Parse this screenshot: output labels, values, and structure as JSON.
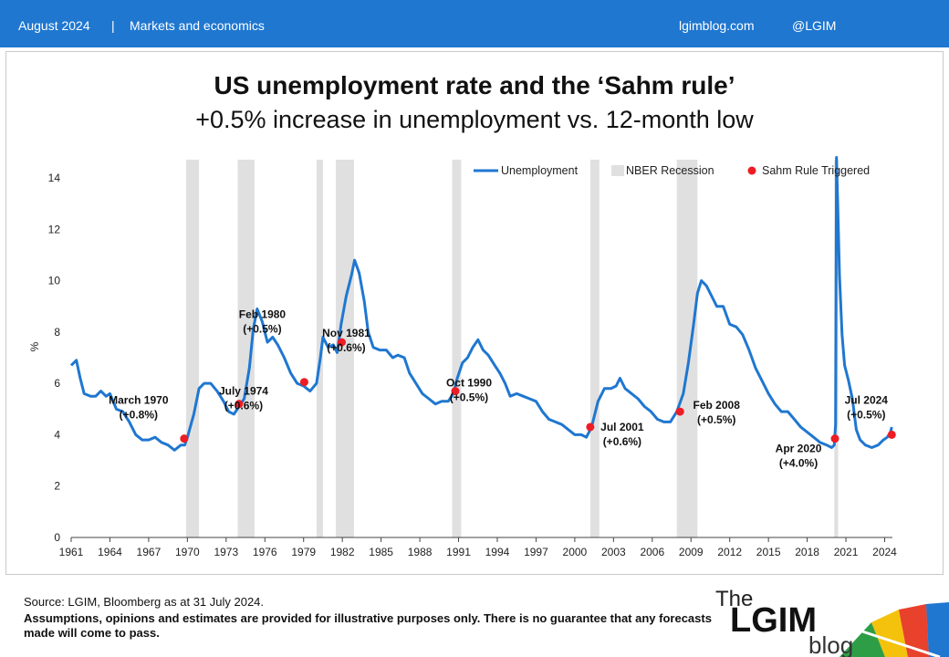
{
  "header": {
    "left_date": "August 2024",
    "separator": "|",
    "section": "Markets and economics",
    "site": "lgimblog.com",
    "handle": "@LGIM"
  },
  "title": "US unemployment rate and the ‘Sahm rule’",
  "subtitle": "+0.5% increase in unemployment vs. 12-month low",
  "footer": {
    "source": "Source: LGIM,  Bloomberg as at 31 July 2024.",
    "disclaimer": "Assumptions,  opinions and estimates are provided for illustrative purposes only.  There is no guarantee that any forecasts made will come to pass.",
    "logo_the": "The",
    "logo_main": "LGIM",
    "logo_blog": "blog"
  },
  "colors": {
    "header": "#1f77d0",
    "line": "#1f77d0",
    "recession": "#e0e0e0",
    "sahm": "#ee1c25"
  },
  "chart_data": {
    "type": "line",
    "ylabel": "%",
    "ylim": [
      0,
      14
    ],
    "yticks": [
      0,
      2,
      4,
      6,
      8,
      10,
      12,
      14
    ],
    "xlim": [
      1961,
      2024.6
    ],
    "xticks": [
      1961,
      1964,
      1967,
      1970,
      1973,
      1976,
      1979,
      1982,
      1985,
      1988,
      1991,
      1994,
      1997,
      2000,
      2003,
      2006,
      2009,
      2012,
      2015,
      2018,
      2021,
      2024
    ],
    "legend": {
      "position": "top",
      "entries": [
        "Unemployment",
        "NBER Recession",
        "Sahm Rule Triggered"
      ]
    },
    "unemployment": [
      [
        1961.0,
        6.7
      ],
      [
        1961.4,
        6.9
      ],
      [
        1961.7,
        6.2
      ],
      [
        1962.0,
        5.6
      ],
      [
        1962.5,
        5.5
      ],
      [
        1962.9,
        5.5
      ],
      [
        1963.3,
        5.7
      ],
      [
        1963.7,
        5.5
      ],
      [
        1964.0,
        5.6
      ],
      [
        1964.5,
        5.0
      ],
      [
        1965.0,
        4.9
      ],
      [
        1965.5,
        4.5
      ],
      [
        1966.0,
        4.0
      ],
      [
        1966.5,
        3.8
      ],
      [
        1967.0,
        3.8
      ],
      [
        1967.5,
        3.9
      ],
      [
        1968.0,
        3.7
      ],
      [
        1968.5,
        3.6
      ],
      [
        1969.0,
        3.4
      ],
      [
        1969.5,
        3.6
      ],
      [
        1969.8,
        3.6
      ],
      [
        1970.0,
        3.9
      ],
      [
        1970.5,
        4.8
      ],
      [
        1970.9,
        5.8
      ],
      [
        1971.3,
        6.0
      ],
      [
        1971.8,
        6.0
      ],
      [
        1972.3,
        5.7
      ],
      [
        1972.8,
        5.3
      ],
      [
        1973.2,
        4.9
      ],
      [
        1973.6,
        4.8
      ],
      [
        1974.0,
        5.1
      ],
      [
        1974.4,
        5.4
      ],
      [
        1974.8,
        6.6
      ],
      [
        1975.1,
        8.1
      ],
      [
        1975.4,
        8.9
      ],
      [
        1975.8,
        8.4
      ],
      [
        1976.2,
        7.6
      ],
      [
        1976.6,
        7.8
      ],
      [
        1977.0,
        7.5
      ],
      [
        1977.5,
        7.0
      ],
      [
        1978.0,
        6.4
      ],
      [
        1978.5,
        6.0
      ],
      [
        1979.0,
        5.9
      ],
      [
        1979.5,
        5.7
      ],
      [
        1980.0,
        6.0
      ],
      [
        1980.3,
        7.0
      ],
      [
        1980.5,
        7.8
      ],
      [
        1980.9,
        7.4
      ],
      [
        1981.3,
        7.5
      ],
      [
        1981.6,
        7.2
      ],
      [
        1981.9,
        8.3
      ],
      [
        1982.3,
        9.4
      ],
      [
        1982.7,
        10.2
      ],
      [
        1982.95,
        10.8
      ],
      [
        1983.3,
        10.3
      ],
      [
        1983.7,
        9.2
      ],
      [
        1984.0,
        8.0
      ],
      [
        1984.4,
        7.4
      ],
      [
        1984.9,
        7.3
      ],
      [
        1985.4,
        7.3
      ],
      [
        1985.9,
        7.0
      ],
      [
        1986.3,
        7.1
      ],
      [
        1986.8,
        7.0
      ],
      [
        1987.2,
        6.4
      ],
      [
        1987.7,
        6.0
      ],
      [
        1988.2,
        5.6
      ],
      [
        1988.7,
        5.4
      ],
      [
        1989.2,
        5.2
      ],
      [
        1989.7,
        5.3
      ],
      [
        1990.2,
        5.3
      ],
      [
        1990.6,
        5.6
      ],
      [
        1990.9,
        6.2
      ],
      [
        1991.3,
        6.8
      ],
      [
        1991.7,
        7.0
      ],
      [
        1992.1,
        7.4
      ],
      [
        1992.5,
        7.7
      ],
      [
        1992.9,
        7.3
      ],
      [
        1993.3,
        7.1
      ],
      [
        1993.8,
        6.7
      ],
      [
        1994.2,
        6.4
      ],
      [
        1994.6,
        6.0
      ],
      [
        1995.0,
        5.5
      ],
      [
        1995.5,
        5.6
      ],
      [
        1996.0,
        5.5
      ],
      [
        1996.5,
        5.4
      ],
      [
        1997.0,
        5.3
      ],
      [
        1997.5,
        4.9
      ],
      [
        1998.0,
        4.6
      ],
      [
        1998.5,
        4.5
      ],
      [
        1999.0,
        4.4
      ],
      [
        1999.5,
        4.2
      ],
      [
        2000.0,
        4.0
      ],
      [
        2000.5,
        4.0
      ],
      [
        2000.9,
        3.9
      ],
      [
        2001.3,
        4.3
      ],
      [
        2001.8,
        5.3
      ],
      [
        2002.3,
        5.8
      ],
      [
        2002.8,
        5.8
      ],
      [
        2003.2,
        5.9
      ],
      [
        2003.5,
        6.2
      ],
      [
        2003.9,
        5.8
      ],
      [
        2004.4,
        5.6
      ],
      [
        2004.9,
        5.4
      ],
      [
        2005.4,
        5.1
      ],
      [
        2005.9,
        4.9
      ],
      [
        2006.4,
        4.6
      ],
      [
        2006.9,
        4.5
      ],
      [
        2007.4,
        4.5
      ],
      [
        2007.9,
        4.9
      ],
      [
        2008.4,
        5.6
      ],
      [
        2008.8,
        6.8
      ],
      [
        2009.2,
        8.3
      ],
      [
        2009.5,
        9.5
      ],
      [
        2009.8,
        10.0
      ],
      [
        2010.2,
        9.8
      ],
      [
        2010.6,
        9.4
      ],
      [
        2011.0,
        9.0
      ],
      [
        2011.5,
        9.0
      ],
      [
        2012.0,
        8.3
      ],
      [
        2012.5,
        8.2
      ],
      [
        2013.0,
        7.9
      ],
      [
        2013.5,
        7.3
      ],
      [
        2014.0,
        6.6
      ],
      [
        2014.5,
        6.1
      ],
      [
        2015.0,
        5.6
      ],
      [
        2015.5,
        5.2
      ],
      [
        2016.0,
        4.9
      ],
      [
        2016.5,
        4.9
      ],
      [
        2017.0,
        4.6
      ],
      [
        2017.5,
        4.3
      ],
      [
        2018.0,
        4.1
      ],
      [
        2018.5,
        3.9
      ],
      [
        2019.0,
        3.7
      ],
      [
        2019.5,
        3.6
      ],
      [
        2019.9,
        3.5
      ],
      [
        2020.1,
        3.6
      ],
      [
        2020.2,
        4.4
      ],
      [
        2020.27,
        14.8
      ],
      [
        2020.35,
        13.2
      ],
      [
        2020.5,
        10.2
      ],
      [
        2020.7,
        7.9
      ],
      [
        2020.9,
        6.7
      ],
      [
        2021.2,
        6.1
      ],
      [
        2021.5,
        5.4
      ],
      [
        2021.8,
        4.2
      ],
      [
        2022.1,
        3.8
      ],
      [
        2022.5,
        3.6
      ],
      [
        2023.0,
        3.5
      ],
      [
        2023.5,
        3.6
      ],
      [
        2023.9,
        3.8
      ],
      [
        2024.2,
        3.9
      ],
      [
        2024.45,
        4.1
      ],
      [
        2024.55,
        4.3
      ]
    ],
    "recessions": [
      [
        1969.9,
        1970.9
      ],
      [
        1973.9,
        1975.2
      ],
      [
        1980.0,
        1980.5
      ],
      [
        1981.5,
        1982.9
      ],
      [
        1990.5,
        1991.2
      ],
      [
        2001.2,
        2001.9
      ],
      [
        2007.9,
        2009.5
      ],
      [
        2020.1,
        2020.4
      ]
    ],
    "sahm_triggers": [
      {
        "x": 1969.75,
        "y": 3.85,
        "date": "March 1970",
        "change": "(+0.8%)"
      },
      {
        "x": 1974.0,
        "y": 5.2,
        "date": "July 1974",
        "change": "(+0.6%)"
      },
      {
        "x": 1979.05,
        "y": 6.05,
        "date": "Feb 1980",
        "change": "(+0.5%)"
      },
      {
        "x": 1981.95,
        "y": 7.6,
        "date": "Nov 1981",
        "change": "(+0.6%)"
      },
      {
        "x": 1990.75,
        "y": 5.7,
        "date": "Oct 1990",
        "change": "(+0.5%)"
      },
      {
        "x": 2001.2,
        "y": 4.3,
        "date": "Jul 2001",
        "change": "(+0.6%)"
      },
      {
        "x": 2008.15,
        "y": 4.9,
        "date": "Feb 2008",
        "change": "(+0.5%)"
      },
      {
        "x": 2020.15,
        "y": 3.85,
        "date": "Apr 2020",
        "change": "(+4.0%)"
      },
      {
        "x": 2024.55,
        "y": 4.0,
        "date": "Jul 2024",
        "change": "(+0.5%)"
      }
    ]
  }
}
